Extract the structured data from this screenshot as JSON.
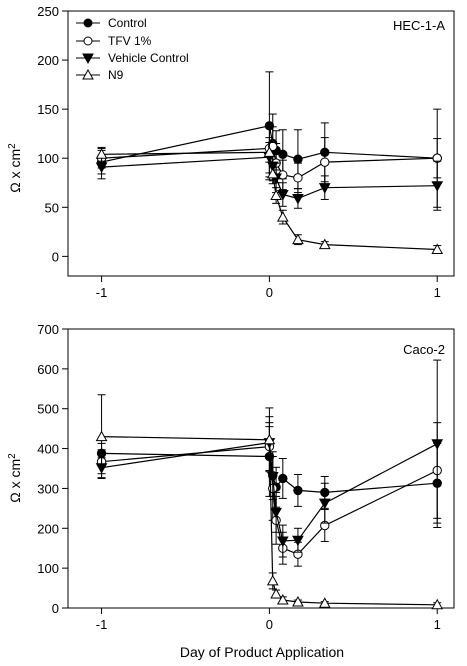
{
  "figure": {
    "xlabel": "Day of Product Application"
  },
  "chart_data": [
    {
      "type": "line",
      "panel_label": "HEC-1-A",
      "ylabel_text": "Ω x cm",
      "ylabel_sup": "2",
      "xlim": [
        -1.2,
        1.1
      ],
      "ylim": [
        -20,
        250
      ],
      "x_ticks": [
        -1,
        0,
        1
      ],
      "y_ticks": [
        0,
        50,
        100,
        150,
        200,
        250
      ],
      "legend": {
        "position": "top-left"
      },
      "series": [
        {
          "name": "Control",
          "marker": "circle-filled",
          "points": [
            {
              "x": -1,
              "y": 96,
              "err": 12
            },
            {
              "x": 0,
              "y": 133,
              "err": 55
            },
            {
              "x": 0.02,
              "y": 115,
              "err": 30
            },
            {
              "x": 0.04,
              "y": 108,
              "err": 20
            },
            {
              "x": 0.08,
              "y": 104,
              "err": 25
            },
            {
              "x": 0.17,
              "y": 99,
              "err": 30
            },
            {
              "x": 0.33,
              "y": 106,
              "err": 30
            },
            {
              "x": 1,
              "y": 100,
              "err": 50
            }
          ]
        },
        {
          "name": "TFV 1%",
          "marker": "circle-open",
          "points": [
            {
              "x": -1,
              "y": 100,
              "err": 10
            },
            {
              "x": 0,
              "y": 110,
              "err": 25
            },
            {
              "x": 0.02,
              "y": 112,
              "err": 20
            },
            {
              "x": 0.04,
              "y": 95,
              "err": 20
            },
            {
              "x": 0.08,
              "y": 83,
              "err": 15
            },
            {
              "x": 0.17,
              "y": 80,
              "err": 15
            },
            {
              "x": 0.33,
              "y": 96,
              "err": 25
            },
            {
              "x": 1,
              "y": 100,
              "err": 20
            }
          ]
        },
        {
          "name": "Vehicle Control",
          "marker": "triangle-down-filled",
          "points": [
            {
              "x": -1,
              "y": 91,
              "err": 12
            },
            {
              "x": 0,
              "y": 101,
              "err": 20
            },
            {
              "x": 0.02,
              "y": 92,
              "err": 15
            },
            {
              "x": 0.04,
              "y": 80,
              "err": 15
            },
            {
              "x": 0.08,
              "y": 63,
              "err": 12
            },
            {
              "x": 0.17,
              "y": 59,
              "err": 10
            },
            {
              "x": 0.33,
              "y": 70,
              "err": 12
            },
            {
              "x": 1,
              "y": 72,
              "err": 25
            }
          ]
        },
        {
          "name": "N9",
          "marker": "triangle-up-open",
          "points": [
            {
              "x": -1,
              "y": 104,
              "err": 7
            },
            {
              "x": 0,
              "y": 106,
              "err": 10
            },
            {
              "x": 0.02,
              "y": 84,
              "err": 10
            },
            {
              "x": 0.04,
              "y": 62,
              "err": 8
            },
            {
              "x": 0.08,
              "y": 40,
              "err": 7
            },
            {
              "x": 0.17,
              "y": 17,
              "err": 5
            },
            {
              "x": 0.33,
              "y": 12,
              "err": 3
            },
            {
              "x": 1,
              "y": 7,
              "err": 4
            }
          ]
        }
      ]
    },
    {
      "type": "line",
      "panel_label": "Caco-2",
      "ylabel_text": "Ω x cm",
      "ylabel_sup": "2",
      "xlim": [
        -1.2,
        1.1
      ],
      "ylim": [
        0,
        700
      ],
      "x_ticks": [
        -1,
        0,
        1
      ],
      "y_ticks": [
        0,
        100,
        200,
        300,
        400,
        500,
        600,
        700
      ],
      "series": [
        {
          "name": "Control",
          "marker": "circle-filled",
          "points": [
            {
              "x": -1,
              "y": 388,
              "err": 25
            },
            {
              "x": 0,
              "y": 380,
              "err": 100
            },
            {
              "x": 0.02,
              "y": 332,
              "err": 60
            },
            {
              "x": 0.04,
              "y": 303,
              "err": 50
            },
            {
              "x": 0.08,
              "y": 325,
              "err": 50
            },
            {
              "x": 0.17,
              "y": 295,
              "err": 40
            },
            {
              "x": 0.33,
              "y": 290,
              "err": 40
            },
            {
              "x": 1,
              "y": 313,
              "err": 100
            }
          ]
        },
        {
          "name": "TFV 1%",
          "marker": "circle-open",
          "points": [
            {
              "x": -1,
              "y": 367,
              "err": 30
            },
            {
              "x": 0,
              "y": 405,
              "err": 60
            },
            {
              "x": 0.02,
              "y": 300,
              "err": 80
            },
            {
              "x": 0.04,
              "y": 220,
              "err": 60
            },
            {
              "x": 0.08,
              "y": 150,
              "err": 40
            },
            {
              "x": 0.17,
              "y": 135,
              "err": 30
            },
            {
              "x": 0.33,
              "y": 207,
              "err": 40
            },
            {
              "x": 1,
              "y": 345,
              "err": 120
            }
          ]
        },
        {
          "name": "Vehicle Control",
          "marker": "triangle-down-filled",
          "points": [
            {
              "x": -1,
              "y": 352,
              "err": 25
            },
            {
              "x": 0,
              "y": 415,
              "err": 40
            },
            {
              "x": 0.02,
              "y": 330,
              "err": 50
            },
            {
              "x": 0.04,
              "y": 240,
              "err": 50
            },
            {
              "x": 0.08,
              "y": 168,
              "err": 40
            },
            {
              "x": 0.17,
              "y": 170,
              "err": 30
            },
            {
              "x": 0.33,
              "y": 263,
              "err": 50
            },
            {
              "x": 1,
              "y": 412,
              "err": 210
            }
          ]
        },
        {
          "name": "N9",
          "marker": "triangle-up-open",
          "points": [
            {
              "x": -1,
              "y": 430,
              "err": 105
            },
            {
              "x": 0,
              "y": 422,
              "err": 80
            },
            {
              "x": 0.02,
              "y": 68,
              "err": 20
            },
            {
              "x": 0.04,
              "y": 35,
              "err": 10
            },
            {
              "x": 0.08,
              "y": 20,
              "err": 8
            },
            {
              "x": 0.17,
              "y": 15,
              "err": 5
            },
            {
              "x": 0.33,
              "y": 12,
              "err": 4
            },
            {
              "x": 1,
              "y": 8,
              "err": 5
            }
          ]
        }
      ]
    }
  ]
}
